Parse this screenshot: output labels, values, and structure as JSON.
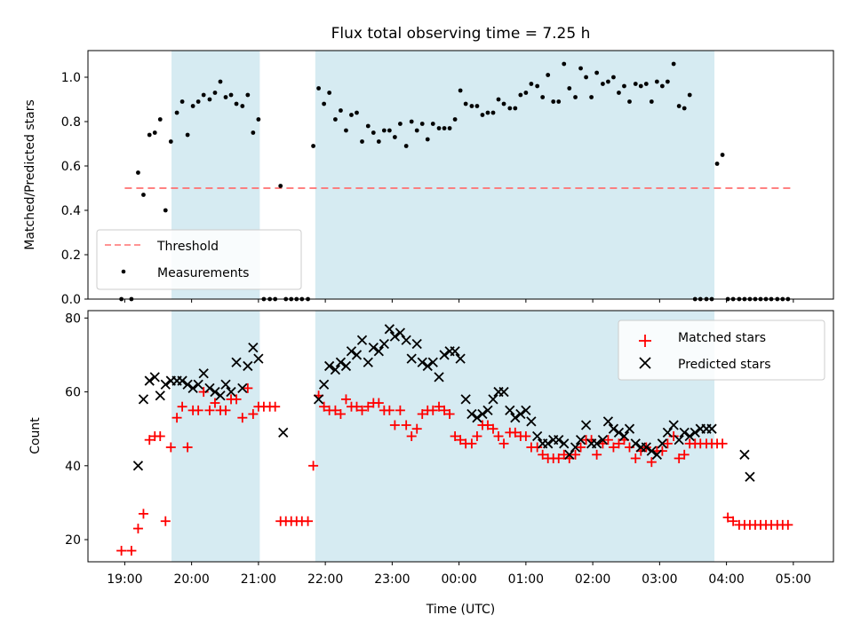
{
  "chart_data": [
    {
      "type": "scatter",
      "title": "Flux total observing time = 7.25 h",
      "xlabel": "",
      "ylabel": "Matched/Predicted stars",
      "xlim": [
        -0.55,
        10.6
      ],
      "ylim": [
        0,
        1.12
      ],
      "yticks": [
        0.0,
        0.2,
        0.4,
        0.6,
        0.8,
        1.0
      ],
      "ytick_labels": [
        "0.0",
        "0.2",
        "0.4",
        "0.6",
        "0.8",
        "1.0"
      ],
      "shaded_spans": [
        [
          0.7,
          2.02
        ],
        [
          2.85,
          8.82
        ]
      ],
      "legend_position": "lower-left",
      "grid": false,
      "series": [
        {
          "name": "Threshold",
          "style": "dashed-line",
          "color": "#ff7070",
          "x": [
            0.0,
            10.0
          ],
          "y": [
            0.5,
            0.5
          ]
        },
        {
          "name": "Measurements",
          "style": "dot",
          "color": "#000000",
          "x": [
            -0.05,
            0.1,
            0.2,
            0.28,
            0.37,
            0.45,
            0.53,
            0.61,
            0.69,
            0.78,
            0.86,
            0.94,
            1.02,
            1.1,
            1.18,
            1.27,
            1.35,
            1.43,
            1.51,
            1.59,
            1.67,
            1.76,
            1.84,
            1.92,
            2.0,
            2.08,
            2.17,
            2.25,
            2.33,
            2.41,
            2.49,
            2.57,
            2.65,
            2.74,
            2.82,
            2.9,
            2.98,
            3.06,
            3.15,
            3.23,
            3.31,
            3.39,
            3.47,
            3.55,
            3.64,
            3.72,
            3.8,
            3.88,
            3.96,
            4.04,
            4.12,
            4.21,
            4.29,
            4.37,
            4.45,
            4.53,
            4.61,
            4.7,
            4.78,
            4.86,
            4.94,
            5.02,
            5.1,
            5.19,
            5.27,
            5.35,
            5.43,
            5.51,
            5.59,
            5.67,
            5.76,
            5.84,
            5.92,
            6.0,
            6.08,
            6.17,
            6.25,
            6.33,
            6.41,
            6.49,
            6.57,
            6.65,
            6.74,
            6.82,
            6.9,
            6.98,
            7.06,
            7.15,
            7.23,
            7.31,
            7.39,
            7.47,
            7.55,
            7.64,
            7.72,
            7.8,
            7.88,
            7.96,
            8.04,
            8.12,
            8.21,
            8.29,
            8.37,
            8.45,
            8.53,
            8.61,
            8.7,
            8.78,
            8.86,
            8.94,
            9.02,
            9.1,
            9.19,
            9.27,
            9.35,
            9.43,
            9.51,
            9.59,
            9.67,
            9.76,
            9.84,
            9.92
          ],
          "y": [
            0.0,
            0.0,
            0.57,
            0.47,
            0.74,
            0.75,
            0.81,
            0.4,
            0.71,
            0.84,
            0.89,
            0.74,
            0.87,
            0.89,
            0.92,
            0.9,
            0.93,
            0.98,
            0.91,
            0.92,
            0.88,
            0.87,
            0.92,
            0.75,
            0.81,
            0.0,
            0.0,
            0.0,
            0.51,
            0.0,
            0.0,
            0.0,
            0.0,
            0.0,
            0.69,
            0.95,
            0.88,
            0.93,
            0.81,
            0.85,
            0.76,
            0.83,
            0.84,
            0.71,
            0.78,
            0.75,
            0.71,
            0.76,
            0.76,
            0.73,
            0.79,
            0.69,
            0.8,
            0.76,
            0.79,
            0.72,
            0.79,
            0.77,
            0.77,
            0.77,
            0.81,
            0.94,
            0.88,
            0.87,
            0.87,
            0.83,
            0.84,
            0.84,
            0.9,
            0.88,
            0.86,
            0.86,
            0.92,
            0.93,
            0.97,
            0.96,
            0.91,
            1.01,
            0.89,
            0.89,
            1.06,
            0.95,
            0.91,
            1.04,
            1.0,
            0.91,
            1.02,
            0.97,
            0.98,
            1.0,
            0.93,
            0.96,
            0.89,
            0.97,
            0.96,
            0.97,
            0.89,
            0.98,
            0.96,
            0.98,
            1.06,
            0.87,
            0.86,
            0.92,
            0.0,
            0.0,
            0.0,
            0.0,
            0.61,
            0.65,
            0.0,
            0.0,
            0.0,
            0.0,
            0.0,
            0.0,
            0.0,
            0.0,
            0.0,
            0.0,
            0.0,
            0.0
          ]
        }
      ]
    },
    {
      "type": "scatter",
      "title": "",
      "xlabel": "Time (UTC)",
      "ylabel": "Count",
      "xlim": [
        -0.55,
        10.6
      ],
      "ylim": [
        14,
        82
      ],
      "yticks": [
        20,
        40,
        60,
        80
      ],
      "ytick_labels": [
        "20",
        "40",
        "60",
        "80"
      ],
      "xticks": [
        0,
        1,
        2,
        3,
        4,
        5,
        6,
        7,
        8,
        9,
        10
      ],
      "xtick_labels": [
        "19:00",
        "20:00",
        "21:00",
        "22:00",
        "23:00",
        "00:00",
        "01:00",
        "02:00",
        "03:00",
        "04:00",
        "05:00"
      ],
      "shaded_spans": [
        [
          0.7,
          2.02
        ],
        [
          2.85,
          8.82
        ]
      ],
      "legend_position": "top-right",
      "grid": false,
      "series": [
        {
          "name": "Matched stars",
          "marker": "+",
          "color": "#ff0000",
          "x": [
            -0.05,
            0.1,
            0.2,
            0.28,
            0.37,
            0.45,
            0.53,
            0.61,
            0.69,
            0.78,
            0.86,
            0.94,
            1.02,
            1.1,
            1.18,
            1.27,
            1.35,
            1.43,
            1.51,
            1.59,
            1.67,
            1.76,
            1.84,
            1.92,
            2.0,
            2.08,
            2.17,
            2.25,
            2.33,
            2.41,
            2.49,
            2.57,
            2.65,
            2.74,
            2.82,
            2.9,
            2.98,
            3.06,
            3.15,
            3.23,
            3.31,
            3.39,
            3.47,
            3.55,
            3.64,
            3.72,
            3.8,
            3.88,
            3.96,
            4.04,
            4.12,
            4.21,
            4.29,
            4.37,
            4.45,
            4.53,
            4.61,
            4.7,
            4.78,
            4.86,
            4.94,
            5.02,
            5.1,
            5.19,
            5.27,
            5.35,
            5.43,
            5.51,
            5.59,
            5.67,
            5.76,
            5.84,
            5.92,
            6.0,
            6.08,
            6.17,
            6.25,
            6.33,
            6.41,
            6.49,
            6.57,
            6.65,
            6.74,
            6.82,
            6.9,
            6.98,
            7.06,
            7.15,
            7.23,
            7.31,
            7.39,
            7.47,
            7.55,
            7.64,
            7.72,
            7.8,
            7.88,
            7.96,
            8.04,
            8.12,
            8.21,
            8.29,
            8.37,
            8.45,
            8.53,
            8.61,
            8.7,
            8.78,
            8.86,
            8.94,
            9.02,
            9.1,
            9.19,
            9.27,
            9.35,
            9.43,
            9.51,
            9.59,
            9.67,
            9.76,
            9.84,
            9.92
          ],
          "y": [
            17,
            17,
            23,
            27,
            47,
            48,
            48,
            25,
            45,
            53,
            56,
            45,
            55,
            55,
            60,
            55,
            57,
            55,
            55,
            58,
            58,
            53,
            61,
            54,
            56,
            56,
            56,
            56,
            25,
            25,
            25,
            25,
            25,
            25,
            40,
            59,
            56,
            55,
            55,
            54,
            58,
            56,
            56,
            55,
            56,
            57,
            57,
            55,
            55,
            51,
            55,
            51,
            48,
            50,
            54,
            55,
            55,
            56,
            55,
            54,
            48,
            47,
            46,
            46,
            48,
            51,
            51,
            50,
            48,
            46,
            49,
            49,
            48,
            48,
            45,
            45,
            43,
            42,
            42,
            42,
            43,
            42,
            43,
            45,
            47,
            47,
            43,
            46,
            47,
            45,
            46,
            47,
            45,
            42,
            44,
            45,
            41,
            44,
            44,
            46,
            48,
            42,
            43,
            46,
            46,
            46,
            46,
            46,
            46,
            46,
            26,
            25,
            24,
            24,
            24,
            24,
            24,
            24,
            24,
            24,
            24,
            24
          ]
        },
        {
          "name": "Predicted stars",
          "marker": "x",
          "color": "#000000",
          "x": [
            0.2,
            0.28,
            0.37,
            0.45,
            0.53,
            0.61,
            0.69,
            0.78,
            0.86,
            0.94,
            1.02,
            1.1,
            1.18,
            1.27,
            1.35,
            1.43,
            1.51,
            1.59,
            1.67,
            1.76,
            1.84,
            1.92,
            2.0,
            2.37,
            2.9,
            2.98,
            3.06,
            3.15,
            3.23,
            3.31,
            3.39,
            3.47,
            3.55,
            3.64,
            3.72,
            3.8,
            3.88,
            3.96,
            4.04,
            4.12,
            4.21,
            4.29,
            4.37,
            4.45,
            4.53,
            4.61,
            4.7,
            4.78,
            4.86,
            4.94,
            5.02,
            5.1,
            5.19,
            5.27,
            5.35,
            5.43,
            5.51,
            5.59,
            5.67,
            5.76,
            5.84,
            5.92,
            6.0,
            6.08,
            6.17,
            6.25,
            6.33,
            6.41,
            6.49,
            6.57,
            6.65,
            6.74,
            6.82,
            6.9,
            6.98,
            7.06,
            7.15,
            7.23,
            7.31,
            7.39,
            7.47,
            7.55,
            7.64,
            7.72,
            7.8,
            7.88,
            7.96,
            8.04,
            8.12,
            8.21,
            8.29,
            8.37,
            8.45,
            8.53,
            8.61,
            8.7,
            8.78,
            9.27,
            9.35
          ],
          "y": [
            40,
            58,
            63,
            64,
            59,
            62,
            63,
            63,
            63,
            62,
            61,
            62,
            65,
            61,
            60,
            59,
            62,
            60,
            68,
            61,
            67,
            72,
            69,
            49,
            58,
            62,
            67,
            66,
            68,
            67,
            71,
            70,
            74,
            68,
            72,
            71,
            73,
            77,
            75,
            76,
            74,
            69,
            73,
            68,
            67,
            68,
            64,
            70,
            71,
            71,
            69,
            58,
            54,
            53,
            54,
            55,
            58,
            60,
            60,
            55,
            53,
            54,
            55,
            52,
            48,
            46,
            46,
            47,
            47,
            46,
            43,
            45,
            47,
            51,
            46,
            46,
            47,
            52,
            50,
            49,
            48,
            50,
            46,
            45,
            45,
            44,
            43,
            46,
            49,
            51,
            47,
            49,
            48,
            49,
            50,
            50,
            50,
            43,
            37
          ]
        }
      ]
    }
  ]
}
